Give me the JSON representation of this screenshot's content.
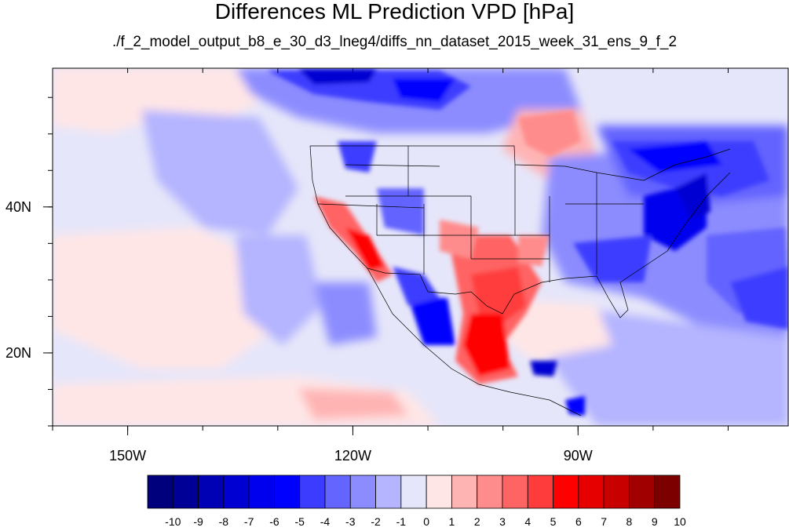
{
  "title": "Differences ML Prediction VPD [hPa]",
  "subtitle": "./f_2_model_output_b8_e_30_d3_lneg4/diffs_nn_dataset_2015_week_31_ens_9_f_2",
  "map": {
    "projection": "cylindrical-equidistant",
    "lon_range": [
      -160,
      -62
    ],
    "lat_range": [
      10,
      59
    ],
    "lon_ticks": [
      {
        "value": -150,
        "label": "150W"
      },
      {
        "value": -120,
        "label": "120W"
      },
      {
        "value": -90,
        "label": "90W"
      }
    ],
    "lat_ticks": [
      {
        "value": 40,
        "label": "40N"
      },
      {
        "value": 20,
        "label": "20N"
      }
    ]
  },
  "colorbar": {
    "labels": [
      "-10",
      "-9",
      "-8",
      "-7",
      "-6",
      "-5",
      "-4",
      "-3",
      "-2",
      "-1",
      "0",
      "1",
      "2",
      "3",
      "4",
      "5",
      "6",
      "7",
      "8",
      "9",
      "10"
    ],
    "colors": [
      "#00007d",
      "#000096",
      "#0000b4",
      "#0000d2",
      "#0000ee",
      "#0000ff",
      "#3c3cff",
      "#6464ff",
      "#8c8cff",
      "#b4b4ff",
      "#e6e6fa",
      "#ffe6e6",
      "#ffb4b4",
      "#ff8c8c",
      "#ff6464",
      "#ff3c3c",
      "#ff0000",
      "#e60000",
      "#c80000",
      "#a00000",
      "#7d0000"
    ]
  }
}
